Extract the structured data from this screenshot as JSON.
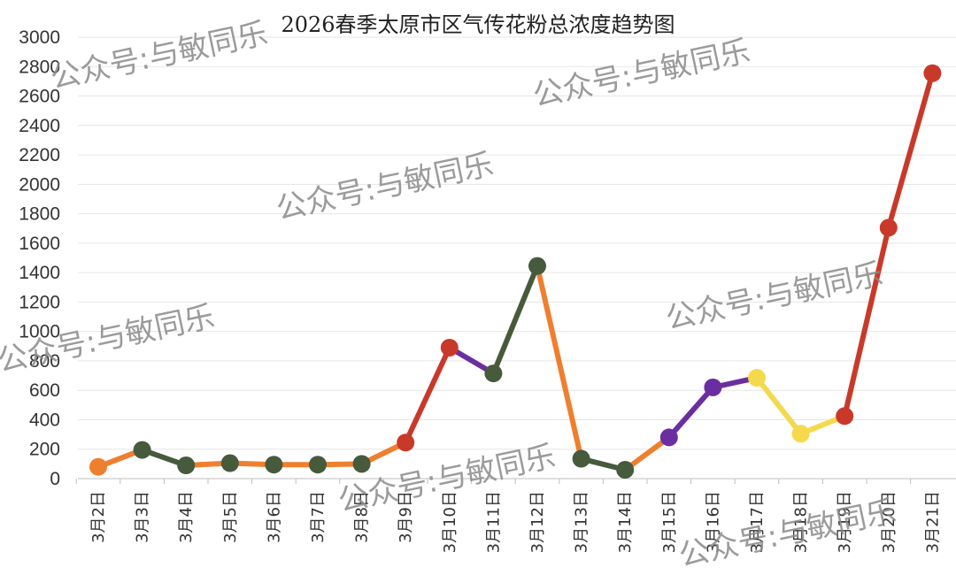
{
  "chart_data": {
    "type": "line",
    "title": "2026春季太原市区气传花粉总浓度趋势图",
    "xlabel": "",
    "ylabel": "",
    "ylim": [
      0,
      3000
    ],
    "yticks": [
      0,
      200,
      400,
      600,
      800,
      1000,
      1200,
      1400,
      1600,
      1800,
      2000,
      2200,
      2400,
      2600,
      2800,
      3000
    ],
    "grid": true,
    "categories": [
      "3月2日",
      "3月3日",
      "3月4日",
      "3月5日",
      "3月6日",
      "3月7日",
      "3月8日",
      "3月9日",
      "3月10日",
      "3月11日",
      "3月12日",
      "3月13日",
      "3月14日",
      "3月15日",
      "3月16日",
      "3月17日",
      "3月18日",
      "3月19日",
      "3月20日",
      "3月21日"
    ],
    "values": [
      80,
      195,
      90,
      105,
      95,
      95,
      100,
      245,
      890,
      715,
      1445,
      135,
      60,
      280,
      620,
      685,
      305,
      425,
      1705,
      2755
    ],
    "point_colors": [
      "#ef7f2e",
      "#465a3c",
      "#465a3c",
      "#465a3c",
      "#465a3c",
      "#465a3c",
      "#465a3c",
      "#c9392a",
      "#c9392a",
      "#465a3c",
      "#465a3c",
      "#465a3c",
      "#465a3c",
      "#6b2ea1",
      "#6b2ea1",
      "#f4d94d",
      "#f4d94d",
      "#c9392a",
      "#c9392a",
      "#c9392a"
    ],
    "segment_colors": [
      "#ef7f2e",
      "#465a3c",
      "#ef7f2e",
      "#ef7f2e",
      "#ef7f2e",
      "#ef7f2e",
      "#ef7f2e",
      "#c9392a",
      "#6b2ea1",
      "#465a3c",
      "#ef7f2e",
      "#465a3c",
      "#ef7f2e",
      "#6b2ea1",
      "#6b2ea1",
      "#f4d94d",
      "#f4d94d",
      "#c9392a",
      "#c9392a"
    ]
  },
  "watermark": "公众号:与敏同乐"
}
